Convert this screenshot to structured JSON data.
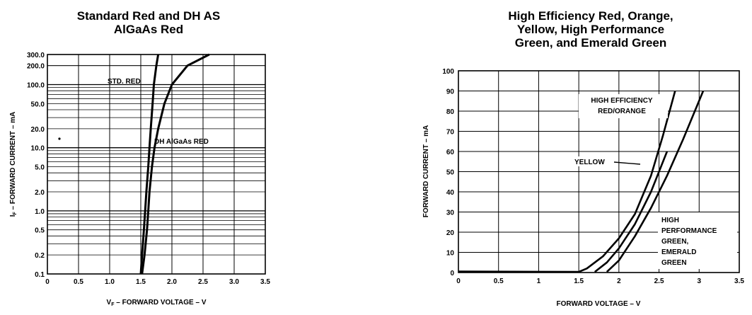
{
  "chart_data": [
    {
      "type": "line",
      "title": "Standard Red and DH AS\nAlGaAs Red",
      "xlabel": "V",
      "xlabel_sub": "F",
      "xlabel_rest": " – FORWARD VOLTAGE – V",
      "ylabel": "I",
      "ylabel_sub": "F",
      "ylabel_rest": " – FORWARD CURRENT – mA",
      "xlim": [
        0,
        3.5
      ],
      "ylim": [
        0.1,
        300
      ],
      "yscale": "log",
      "grid": true,
      "x_ticks": [
        "0",
        "0.5",
        "1.0",
        "1.5",
        "2.0",
        "2.5",
        "3.0",
        "3.5"
      ],
      "y_ticks": [
        "0.1",
        "0.2",
        "0.5",
        "1.0",
        "2.0",
        "5.0",
        "10.0",
        "20.0",
        "50.0",
        "100.0",
        "200.0",
        "300.0"
      ],
      "series": [
        {
          "name": "STD. RED",
          "points": [
            [
              1.5,
              0.1
            ],
            [
              1.52,
              0.2
            ],
            [
              1.55,
              0.5
            ],
            [
              1.57,
              1.0
            ],
            [
              1.59,
              2.0
            ],
            [
              1.62,
              5.0
            ],
            [
              1.64,
              10.0
            ],
            [
              1.66,
              20.0
            ],
            [
              1.69,
              50.0
            ],
            [
              1.71,
              100.0
            ],
            [
              1.75,
              200.0
            ],
            [
              1.78,
              300.0
            ]
          ]
        },
        {
          "name": "DH AlGaAs RED",
          "points": [
            [
              1.52,
              0.1
            ],
            [
              1.56,
              0.2
            ],
            [
              1.6,
              0.5
            ],
            [
              1.62,
              1.0
            ],
            [
              1.64,
              2.0
            ],
            [
              1.68,
              5.0
            ],
            [
              1.72,
              10.0
            ],
            [
              1.78,
              20.0
            ],
            [
              1.88,
              50.0
            ],
            [
              2.0,
              100.0
            ],
            [
              2.25,
              200.0
            ],
            [
              2.6,
              300.0
            ]
          ]
        }
      ]
    },
    {
      "type": "line",
      "title": "High Efficiency Red, Orange,\nYellow, High Performance\nGreen, and Emerald Green",
      "xlabel": "FORWARD VOLTAGE – V",
      "ylabel": "FORWARD CURRENT – mA",
      "xlim": [
        0,
        3.5
      ],
      "ylim": [
        0,
        100
      ],
      "grid": true,
      "x_ticks": [
        "0",
        "0.5",
        "1",
        "1.5",
        "2",
        "2.5",
        "3",
        "3.5"
      ],
      "y_ticks": [
        "0",
        "10",
        "20",
        "30",
        "40",
        "50",
        "60",
        "70",
        "80",
        "90",
        "100"
      ],
      "series": [
        {
          "name": "HIGH EFFICIENCY RED/ORANGE",
          "points": [
            [
              0.0,
              0.5
            ],
            [
              1.0,
              0.4
            ],
            [
              1.5,
              0.3
            ],
            [
              1.6,
              2
            ],
            [
              1.8,
              8
            ],
            [
              2.0,
              17
            ],
            [
              2.2,
              29
            ],
            [
              2.4,
              48
            ],
            [
              2.55,
              68
            ],
            [
              2.7,
              90
            ]
          ]
        },
        {
          "name": "YELLOW",
          "points": [
            [
              1.7,
              0.3
            ],
            [
              1.85,
              5
            ],
            [
              2.0,
              12
            ],
            [
              2.2,
              24
            ],
            [
              2.4,
              40
            ],
            [
              2.6,
              60
            ]
          ]
        },
        {
          "name": "HIGH PERFORMANCE GREEN, EMERALD GREEN",
          "points": [
            [
              1.85,
              0.3
            ],
            [
              2.0,
              6
            ],
            [
              2.2,
              18
            ],
            [
              2.4,
              32
            ],
            [
              2.6,
              48
            ],
            [
              2.8,
              66
            ],
            [
              3.05,
              90
            ]
          ]
        }
      ],
      "annotations": [
        "HIGH EFFICIENCY",
        "RED/ORANGE",
        "YELLOW",
        "HIGH",
        "PERFORMANCE",
        "GREEN,",
        "EMERALD",
        "GREEN"
      ]
    }
  ]
}
